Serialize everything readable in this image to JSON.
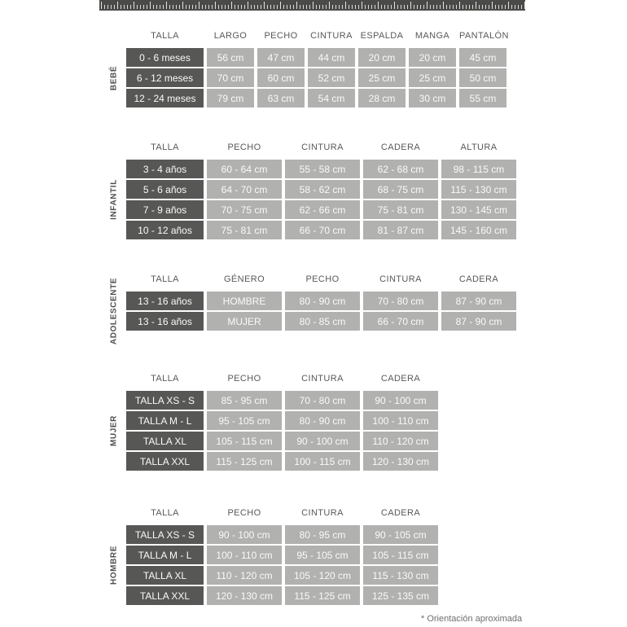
{
  "footnote": "* Orientación aproximada",
  "colors": {
    "ruler_band": "#4a4a48",
    "talla_cell": "#575756",
    "value_cell": "#b1b1b0",
    "header_text": "#58595b",
    "cell_text": "#fafafa",
    "group_label_text": "#4f4f4f"
  },
  "tables": [
    {
      "group": "BEBÉ",
      "columns": [
        "TALLA",
        "LARGO",
        "PECHO",
        "CINTURA",
        "ESPALDA",
        "MANGA",
        "PANTALÓN"
      ],
      "rows": [
        [
          "0 - 6 meses",
          "56 cm",
          "47 cm",
          "44 cm",
          "20 cm",
          "20 cm",
          "45 cm"
        ],
        [
          "6 - 12 meses",
          "70 cm",
          "60 cm",
          "52 cm",
          "25 cm",
          "25 cm",
          "50 cm"
        ],
        [
          "12 - 24 meses",
          "79 cm",
          "63 cm",
          "54 cm",
          "28 cm",
          "30 cm",
          "55 cm"
        ]
      ]
    },
    {
      "group": "INFANTIL",
      "columns": [
        "TALLA",
        "PECHO",
        "CINTURA",
        "CADERA",
        "ALTURA"
      ],
      "rows": [
        [
          "3 - 4 años",
          "60 - 64 cm",
          "55 - 58 cm",
          "62 - 68 cm",
          "98 - 115 cm"
        ],
        [
          "5 - 6 años",
          "64 - 70 cm",
          "58 - 62 cm",
          "68 - 75 cm",
          "115 - 130 cm"
        ],
        [
          "7 - 9 años",
          "70 - 75 cm",
          "62 - 66 cm",
          "75 - 81 cm",
          "130 - 145 cm"
        ],
        [
          "10 - 12 años",
          "75 - 81 cm",
          "66 - 70 cm",
          "81 - 87 cm",
          "145 - 160 cm"
        ]
      ]
    },
    {
      "group": "ADOLESCENTE",
      "columns": [
        "TALLA",
        "GÉNERO",
        "PECHO",
        "CINTURA",
        "CADERA"
      ],
      "rows": [
        [
          "13 - 16 años",
          "HOMBRE",
          "80 - 90 cm",
          "70 - 80 cm",
          "87 - 90 cm"
        ],
        [
          "13 - 16 años",
          "MUJER",
          "80 - 85 cm",
          "66 - 70 cm",
          "87 - 90 cm"
        ]
      ]
    },
    {
      "group": "MUJER",
      "columns": [
        "TALLA",
        "PECHO",
        "CINTURA",
        "CADERA"
      ],
      "rows": [
        [
          "TALLA XS - S",
          "85 - 95 cm",
          "70 - 80 cm",
          "90 - 100 cm"
        ],
        [
          "TALLA M - L",
          "95 - 105 cm",
          "80 - 90 cm",
          "100 - 110 cm"
        ],
        [
          "TALLA XL",
          "105 - 115 cm",
          "90 - 100 cm",
          "110 - 120 cm"
        ],
        [
          "TALLA XXL",
          "115 - 125 cm",
          "100 - 115 cm",
          "120 - 130 cm"
        ]
      ]
    },
    {
      "group": "HOMBRE",
      "columns": [
        "TALLA",
        "PECHO",
        "CINTURA",
        "CADERA"
      ],
      "rows": [
        [
          "TALLA XS - S",
          "90 - 100 cm",
          "80 - 95 cm",
          "90 - 105 cm"
        ],
        [
          "TALLA M - L",
          "100 - 110 cm",
          "95 - 105 cm",
          "105 - 115 cm"
        ],
        [
          "TALLA XL",
          "110 - 120 cm",
          "105 - 120 cm",
          "115 - 130 cm"
        ],
        [
          "TALLA XXL",
          "120 - 130 cm",
          "115 - 125 cm",
          "125 - 135 cm"
        ]
      ]
    }
  ]
}
